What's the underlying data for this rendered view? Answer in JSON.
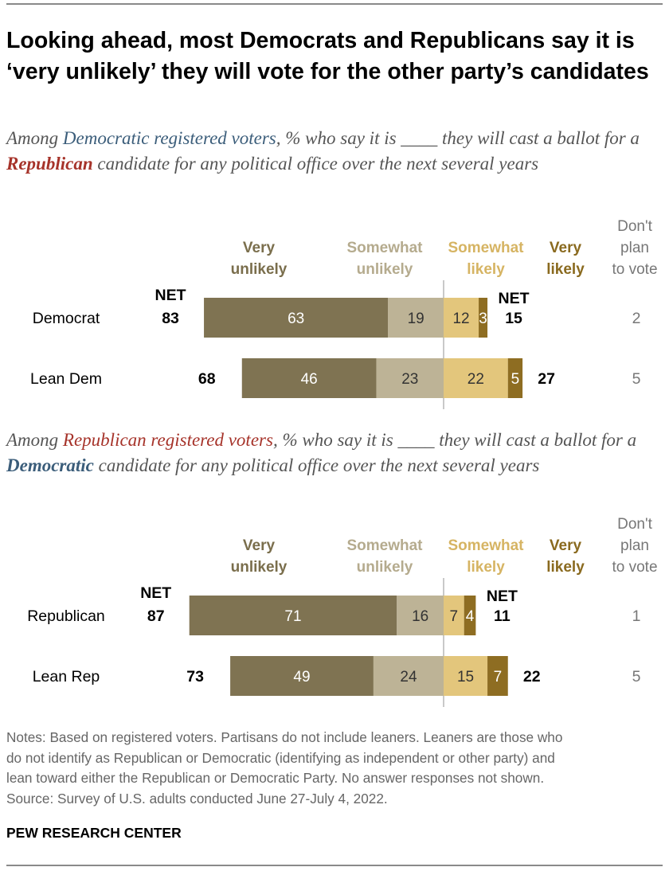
{
  "title": "Looking ahead, most Democrats and Republicans say it is ‘very unlikely’ they will vote for the other party’s candidates",
  "subtitle_dem": {
    "prefix": "Among ",
    "group": "Democratic registered voters",
    "middle": ", % who say it is ____ they will cast a ballot for a ",
    "party": "Republican",
    "suffix": " candidate for any political office over the next several years"
  },
  "subtitle_rep": {
    "prefix": "Among ",
    "group": "Republican registered voters",
    "middle": ", % who say it is ____ they will cast a ballot for a ",
    "party": "Democratic",
    "suffix": " candidate for any political office over the next several years"
  },
  "colors": {
    "very_unlikely": "#7f7352",
    "somewhat_unlikely": "#bdb396",
    "somewhat_likely": "#e3c67c",
    "very_likely": "#8e6d22",
    "very_unlikely_header": "#7a6e4c",
    "somewhat_unlikely_header": "#b5ab8e",
    "somewhat_likely_header": "#d6b463",
    "very_likely_header": "#8a6a1f",
    "dont_plan": "#777777",
    "center_line": "#c9c9c9",
    "dem_text": "#3b5d7a",
    "rep_text": "#a6332a"
  },
  "chart_data": [
    {
      "type": "bar",
      "orientation": "horizontal-diverging",
      "series_labels": {
        "very_unlikely": [
          "Very",
          "unlikely"
        ],
        "somewhat_unlikely": [
          "Somewhat",
          "unlikely"
        ],
        "somewhat_likely": [
          "Somewhat",
          "likely"
        ],
        "very_likely": [
          "Very",
          "likely"
        ],
        "dont_plan": [
          "Don't",
          "plan",
          "to vote"
        ]
      },
      "net_label": "NET",
      "categories": [
        "Democrat",
        "Lean Dem"
      ],
      "rows": [
        {
          "label": "Democrat",
          "very_unlikely": 63,
          "somewhat_unlikely": 19,
          "somewhat_likely": 12,
          "very_likely": 3,
          "net_unlikely": 83,
          "net_likely": 15,
          "dont_plan": 2,
          "show_net_label": true
        },
        {
          "label": "Lean Dem",
          "very_unlikely": 46,
          "somewhat_unlikely": 23,
          "somewhat_likely": 22,
          "very_likely": 5,
          "net_unlikely": 68,
          "net_likely": 27,
          "dont_plan": 5,
          "show_net_label": false
        }
      ]
    },
    {
      "type": "bar",
      "orientation": "horizontal-diverging",
      "series_labels": {
        "very_unlikely": [
          "Very",
          "unlikely"
        ],
        "somewhat_unlikely": [
          "Somewhat",
          "unlikely"
        ],
        "somewhat_likely": [
          "Somewhat",
          "likely"
        ],
        "very_likely": [
          "Very",
          "likely"
        ],
        "dont_plan": [
          "Don't",
          "plan",
          "to vote"
        ]
      },
      "net_label": "NET",
      "categories": [
        "Republican",
        "Lean Rep"
      ],
      "rows": [
        {
          "label": "Republican",
          "very_unlikely": 71,
          "somewhat_unlikely": 16,
          "somewhat_likely": 7,
          "very_likely": 4,
          "net_unlikely": 87,
          "net_likely": 11,
          "dont_plan": 1,
          "show_net_label": true
        },
        {
          "label": "Lean Rep",
          "very_unlikely": 49,
          "somewhat_unlikely": 24,
          "somewhat_likely": 15,
          "very_likely": 7,
          "net_unlikely": 73,
          "net_likely": 22,
          "dont_plan": 5,
          "show_net_label": false
        }
      ]
    }
  ],
  "notes": [
    "Notes: Based on registered voters. Partisans do not include leaners. Leaners are those who",
    "do not identify as Republican or Democratic (identifying as independent or other party) and",
    "lean toward either the Republican or Democratic Party. No answer responses not shown.",
    "Source: Survey of U.S. adults conducted June 27-July 4, 2022."
  ],
  "source_org": "PEW RESEARCH CENTER"
}
